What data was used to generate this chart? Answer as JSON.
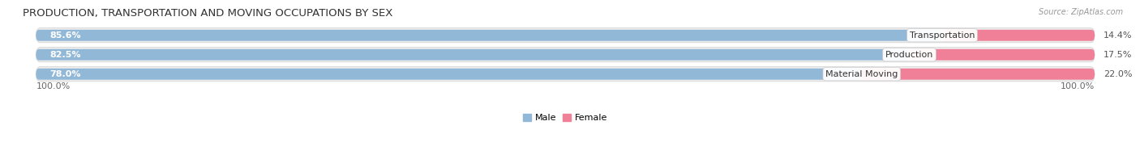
{
  "title": "PRODUCTION, TRANSPORTATION AND MOVING OCCUPATIONS BY SEX",
  "source": "Source: ZipAtlas.com",
  "categories": [
    "Transportation",
    "Production",
    "Material Moving"
  ],
  "male_pct": [
    85.6,
    82.5,
    78.0
  ],
  "female_pct": [
    14.4,
    17.5,
    22.0
  ],
  "male_color": "#92b8d8",
  "female_color": "#f08098",
  "male_color_light": "#b8d4ea",
  "female_color_light": "#f8b8c8",
  "male_label": "Male",
  "female_label": "Female",
  "bg_color": "#f4f4f4",
  "bar_bg_color": "#e8e8ec",
  "row_bg_color": "#ececec",
  "axis_label_left": "100.0%",
  "axis_label_right": "100.0%",
  "title_fontsize": 9.5,
  "source_fontsize": 7,
  "label_fontsize": 8,
  "cat_fontsize": 8,
  "pct_fontsize": 8
}
